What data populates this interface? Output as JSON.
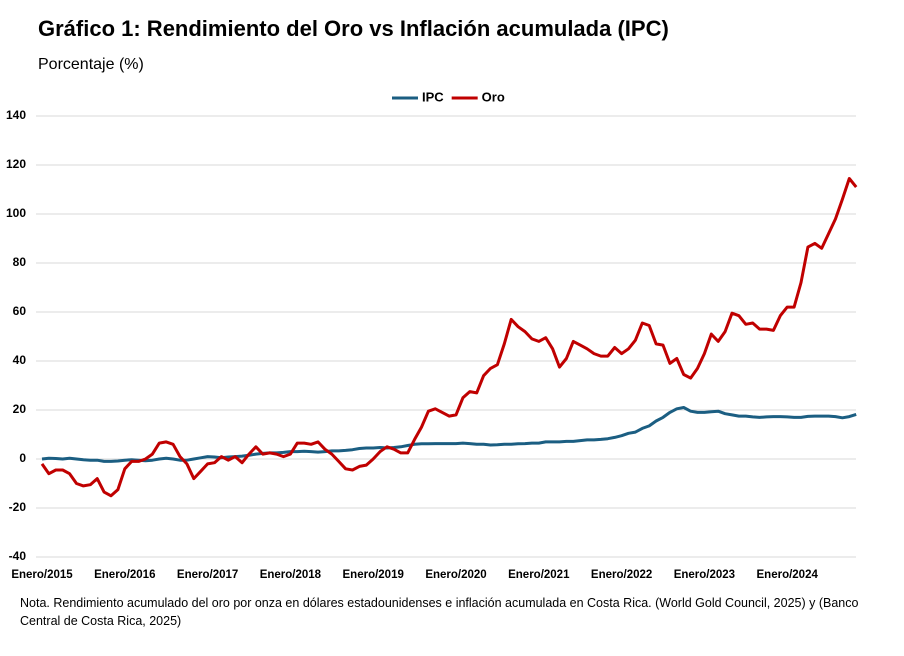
{
  "chart_data": {
    "type": "line",
    "title": "Gráfico 1: Rendimiento del Oro vs Inflación acumulada (IPC)",
    "subtitle": "Porcentaje (%)",
    "note": "Nota. Rendimiento acumulado  del oro  por onza en dólares estadounidenses e inflación acumulada en Costa Rica. (World Gold Council, 2025) y (Banco Central de Costa Rica, 2025)",
    "categories": [
      "Enero/2015",
      null,
      null,
      null,
      null,
      null,
      null,
      null,
      null,
      null,
      null,
      null,
      "Enero/2016",
      null,
      null,
      null,
      null,
      null,
      null,
      null,
      null,
      null,
      null,
      null,
      "Enero/2017",
      null,
      null,
      null,
      null,
      null,
      null,
      null,
      null,
      null,
      null,
      null,
      "Enero/2018",
      null,
      null,
      null,
      null,
      null,
      null,
      null,
      null,
      null,
      null,
      null,
      "Enero/2019",
      null,
      null,
      null,
      null,
      null,
      null,
      null,
      null,
      null,
      null,
      null,
      "Enero/2020",
      null,
      null,
      null,
      null,
      null,
      null,
      null,
      null,
      null,
      null,
      null,
      "Enero/2021",
      null,
      null,
      null,
      null,
      null,
      null,
      null,
      null,
      null,
      null,
      null,
      "Enero/2022",
      null,
      null,
      null,
      null,
      null,
      null,
      null,
      null,
      null,
      null,
      null,
      "Enero/2023",
      null,
      null,
      null,
      null,
      null,
      null,
      null,
      null,
      null,
      null,
      null,
      "Enero/2024",
      null,
      null,
      null,
      null,
      null,
      null,
      null,
      null,
      null,
      null
    ],
    "series": [
      {
        "name": "IPC",
        "color": "#1b5e82",
        "values": [
          0,
          0.3,
          0.2,
          0,
          0.3,
          0,
          -0.3,
          -0.5,
          -0.5,
          -1,
          -1,
          -0.8,
          -0.5,
          -0.3,
          -0.5,
          -0.7,
          -0.5,
          0,
          0.3,
          0,
          -0.5,
          -0.5,
          0,
          0.5,
          1,
          0.8,
          0.5,
          0.8,
          1,
          1.2,
          1.5,
          2,
          2.3,
          2.5,
          2.5,
          2.7,
          3,
          3,
          3.2,
          3,
          2.8,
          3,
          3.3,
          3.3,
          3.5,
          3.8,
          4.3,
          4.5,
          4.5,
          4.7,
          4.5,
          4.7,
          5,
          5.5,
          6,
          6.2,
          6.2,
          6.3,
          6.3,
          6.3,
          6.3,
          6.5,
          6.3,
          6,
          6,
          5.7,
          5.8,
          6,
          6,
          6.2,
          6.3,
          6.5,
          6.5,
          7,
          7,
          7,
          7.2,
          7.2,
          7.5,
          7.8,
          7.8,
          8,
          8.3,
          8.8,
          9.5,
          10.5,
          11,
          12.5,
          13.5,
          15.5,
          17,
          19,
          20.5,
          21,
          19.5,
          19,
          19,
          19.3,
          19.5,
          18.5,
          18,
          17.5,
          17.5,
          17.2,
          17,
          17.2,
          17.3,
          17.3,
          17.2,
          17,
          17,
          17.4,
          17.5,
          17.5,
          17.5,
          17.3,
          16.8,
          17.3,
          18.2
        ]
      },
      {
        "name": "Oro",
        "color": "#c00000",
        "values": [
          -2,
          -6,
          -4.5,
          -4.5,
          -6,
          -10,
          -11,
          -10.5,
          -8,
          -13.5,
          -15,
          -12.5,
          -4,
          -1,
          -1,
          0,
          2,
          6.5,
          7,
          6,
          1,
          -2,
          -8,
          -5,
          -2,
          -1.5,
          1,
          -0.5,
          1,
          -1.5,
          2,
          5,
          2,
          2.5,
          2,
          1,
          2,
          6.5,
          6.5,
          6,
          7,
          4,
          2,
          -1,
          -4,
          -4.5,
          -3,
          -2.5,
          0,
          3,
          5,
          4,
          2.5,
          2.5,
          8,
          13,
          19.5,
          20.5,
          19,
          17.5,
          18,
          25,
          27.5,
          27,
          34,
          37,
          38.5,
          47,
          57,
          54,
          52,
          49,
          48,
          49.5,
          45,
          37.5,
          41,
          48,
          46.5,
          45,
          43,
          42,
          42,
          45.5,
          43,
          45,
          48.5,
          55.5,
          54.5,
          47,
          46.5,
          39,
          41,
          34.5,
          33,
          37,
          43,
          51,
          48,
          52,
          59.5,
          58.5,
          55,
          55.5,
          53,
          53,
          52.5,
          58.5,
          62,
          62,
          72,
          86.5,
          88,
          86,
          92,
          98,
          106,
          114.5,
          111
        ]
      }
    ],
    "ylim": [
      -40,
      140
    ],
    "yticks": [
      -40,
      -20,
      0,
      20,
      40,
      60,
      80,
      100,
      120,
      140
    ],
    "grid": true,
    "legend": "top"
  }
}
